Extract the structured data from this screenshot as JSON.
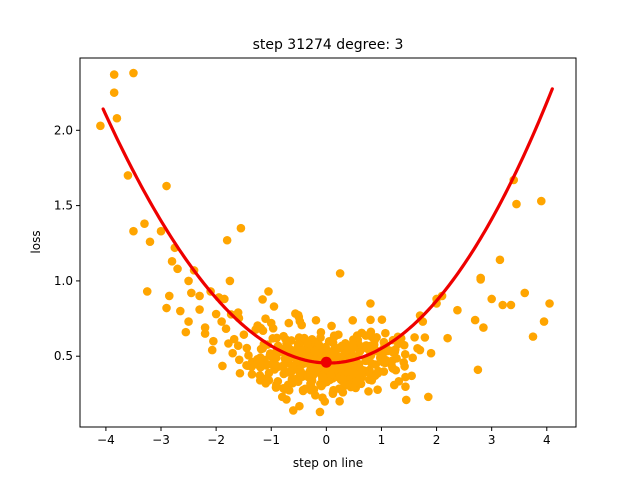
{
  "chart_data": {
    "type": "scatter",
    "title": "step 31274    degree: 3",
    "xlabel": "step on line",
    "ylabel": "loss",
    "xlim": [
      -4.47,
      4.53
    ],
    "ylim": [
      0.03,
      2.48
    ],
    "xticks": [
      -4,
      -3,
      -2,
      -1,
      0,
      1,
      2,
      3,
      4
    ],
    "xtick_labels": [
      "−4",
      "−3",
      "−2",
      "−1",
      "0",
      "1",
      "2",
      "3",
      "4"
    ],
    "yticks": [
      0.5,
      1.0,
      1.5,
      2.0
    ],
    "ytick_labels": [
      "0.5",
      "1.0",
      "1.5",
      "2.0"
    ],
    "grid": false,
    "colors": {
      "points": "#ffa500",
      "fit": "#ee0000",
      "marker": "#ee0000"
    },
    "scatter": {
      "x": [
        -4.1,
        -3.85,
        -3.85,
        -3.8,
        -3.6,
        -3.5,
        -3.5,
        -3.3,
        -3.2,
        -3.0,
        -2.9,
        -2.8,
        -2.75,
        -2.85,
        -2.7,
        -2.55,
        -2.5,
        -2.4,
        -2.3,
        -2.2,
        -2.05,
        -1.8,
        -1.75,
        -1.55,
        -1.85,
        -1.7,
        -2.0,
        -1.6,
        -1.45,
        -1.35,
        -1.2,
        -1.05,
        -0.95,
        -0.8,
        -0.6,
        -0.2,
        0.25,
        0.8,
        1.05,
        1.45,
        1.7,
        1.85,
        2.0,
        2.1,
        2.2,
        2.75,
        2.8,
        3.15,
        3.2,
        3.4,
        3.35,
        3.45,
        3.6,
        3.75,
        3.9,
        3.95,
        4.05,
        2.0,
        1.9,
        1.75,
        -0.5,
        -3.25,
        -2.9,
        -2.65,
        -2.45,
        -2.2,
        -2.3,
        -2.5,
        -1.9,
        -1.95,
        -2.1,
        -1.6,
        -1.25,
        -1.1,
        -1.0,
        0.3,
        0.55,
        2.7,
        2.8,
        2.85,
        3.0
      ],
      "y": [
        2.03,
        2.37,
        2.25,
        2.08,
        1.7,
        2.38,
        1.33,
        1.38,
        1.26,
        1.33,
        1.63,
        1.13,
        1.22,
        0.9,
        1.08,
        0.66,
        1.0,
        1.07,
        0.9,
        0.69,
        0.6,
        1.27,
        1.0,
        1.35,
        0.88,
        0.52,
        0.78,
        0.57,
        0.44,
        0.38,
        0.34,
        0.93,
        0.83,
        0.23,
        0.14,
        0.24,
        1.05,
        0.85,
        0.46,
        0.21,
        0.77,
        0.23,
        0.85,
        0.9,
        0.62,
        0.41,
        1.01,
        1.14,
        0.84,
        1.67,
        0.84,
        1.51,
        0.92,
        0.63,
        1.53,
        0.73,
        0.85,
        0.88,
        0.52,
        0.73,
        0.76,
        0.93,
        0.82,
        0.8,
        0.92,
        0.65,
        0.81,
        0.73,
        0.73,
        0.89,
        0.93,
        0.79,
        0.48,
        0.32,
        0.72,
        0.26,
        0.33,
        0.74,
        1.02,
        0.69,
        0.88
      ],
      "cluster_center": [
        0.0,
        0.45
      ],
      "cluster_count": 420
    },
    "fit_curve": {
      "coeffs": [
        0.455,
        -0.0093,
        0.1055,
        0.00123
      ],
      "x_range": [
        -4.05,
        4.1
      ]
    },
    "marker": {
      "x": 0.0,
      "y": 0.46
    }
  }
}
